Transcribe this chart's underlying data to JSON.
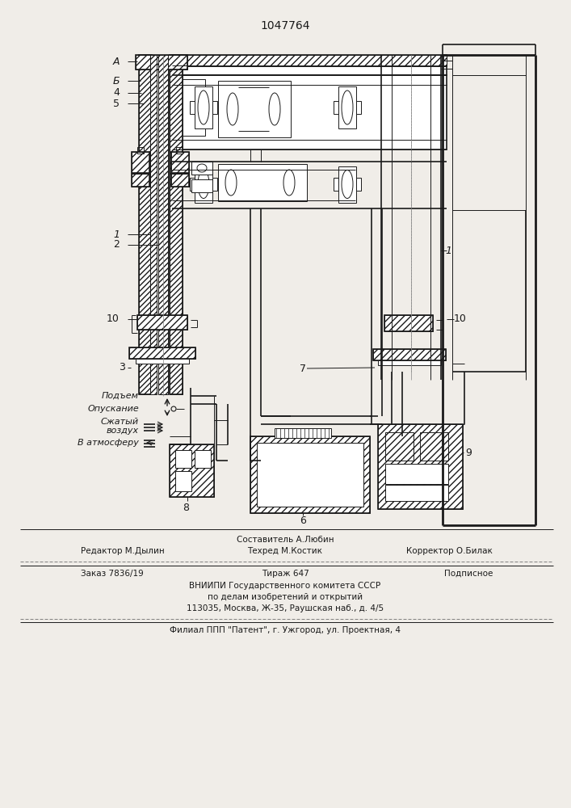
{
  "title": "1047764",
  "bg_color": "#f0ede8",
  "line_color": "#1a1a1a",
  "footer": {
    "line1_center": "Составитель А.Любин",
    "line2_left": "Редактор М.Дылин",
    "line2_center": "Техред М.Костик",
    "line2_right": "Корректор О.Билак",
    "line3_left": "Заказ 7836/19",
    "line3_center": "Тираж 647",
    "line3_right": "Подписное",
    "line4": "ВНИИПИ Государственного комитета СССР",
    "line5": "по делам изобретений и открытий",
    "line6": "113035, Москва, Ж-35, Раушская наб., д. 4/5",
    "line7": "Филиал ППП \"Патент\", г. Ужгород, ул. Проектная, 4"
  }
}
